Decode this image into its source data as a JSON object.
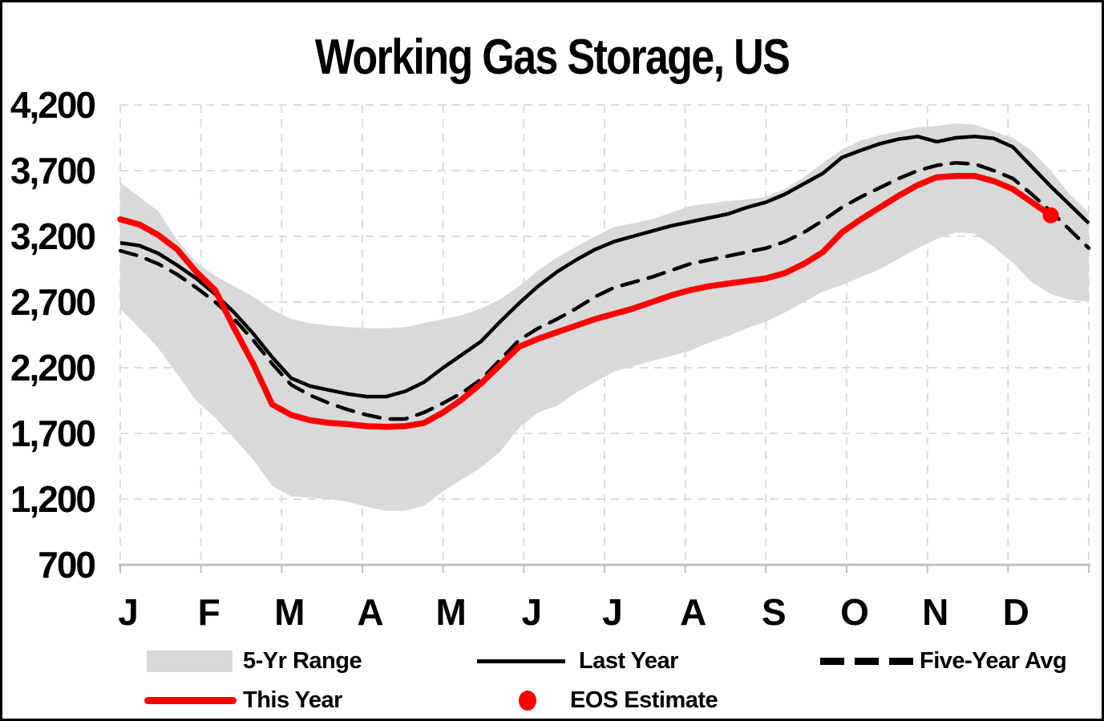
{
  "title": "Working Gas Storage, US",
  "colors": {
    "this_year": "#fe0000",
    "last_year": "#000000",
    "five_year_avg": "#000000",
    "range_band": "#d9d9d9",
    "gridline": "#dcdcdc",
    "axis_line": "#bfbfbf",
    "text": "#000000",
    "background": "#ffffff"
  },
  "legend": {
    "range_label": "5-Yr Range",
    "last_year_label": "Last Year",
    "five_year_avg_label": "Five-Year Avg",
    "this_year_label": "This Year",
    "eos_label": "EOS Estimate"
  },
  "chart_data": {
    "type": "line",
    "title": "Working Gas Storage, US",
    "x_axis": {
      "unit": "week-of-year",
      "month_tick_labels": [
        "J",
        "F",
        "M",
        "A",
        "M",
        "J",
        "J",
        "A",
        "S",
        "O",
        "N",
        "D"
      ],
      "weeks": 52
    },
    "y_axis": {
      "min": 700,
      "max": 4200,
      "step": 500,
      "tick_labels": [
        "4,200",
        "3,700",
        "3,200",
        "2,700",
        "2,200",
        "1,700",
        "1,200",
        "700"
      ],
      "grid": true
    },
    "series": [
      {
        "name": "5-Yr Range",
        "type": "band",
        "color": "#d9d9d9",
        "upper": [
          3610,
          3500,
          3390,
          3170,
          3000,
          2900,
          2820,
          2740,
          2640,
          2570,
          2540,
          2520,
          2510,
          2500,
          2500,
          2510,
          2540,
          2570,
          2600,
          2650,
          2720,
          2820,
          2940,
          3040,
          3120,
          3200,
          3270,
          3300,
          3330,
          3380,
          3430,
          3450,
          3470,
          3480,
          3500,
          3560,
          3650,
          3760,
          3860,
          3930,
          3970,
          4000,
          4030,
          4040,
          4060,
          4050,
          4000,
          3950,
          3850,
          3700,
          3520,
          3380
        ],
        "lower": [
          2650,
          2500,
          2350,
          2150,
          1950,
          1820,
          1660,
          1500,
          1300,
          1220,
          1210,
          1200,
          1180,
          1140,
          1110,
          1110,
          1150,
          1260,
          1350,
          1440,
          1560,
          1740,
          1860,
          1910,
          2010,
          2090,
          2170,
          2210,
          2250,
          2290,
          2330,
          2390,
          2440,
          2500,
          2550,
          2620,
          2700,
          2780,
          2830,
          2890,
          2950,
          3030,
          3110,
          3180,
          3230,
          3220,
          3120,
          3000,
          2850,
          2760,
          2720,
          2700
        ]
      },
      {
        "name": "Last Year",
        "type": "line",
        "style": "solid",
        "color": "#000000",
        "values": [
          3150,
          3130,
          3070,
          2980,
          2880,
          2760,
          2620,
          2460,
          2280,
          2120,
          2060,
          2030,
          2000,
          1980,
          1980,
          2020,
          2090,
          2200,
          2300,
          2400,
          2550,
          2690,
          2820,
          2930,
          3020,
          3100,
          3160,
          3200,
          3240,
          3280,
          3310,
          3340,
          3370,
          3420,
          3460,
          3520,
          3600,
          3680,
          3800,
          3855,
          3905,
          3940,
          3960,
          3920,
          3950,
          3960,
          3945,
          3880,
          3730,
          3580,
          3440,
          3300
        ]
      },
      {
        "name": "Five-Year Avg",
        "type": "line",
        "style": "dashed",
        "color": "#000000",
        "values": [
          3090,
          3050,
          2990,
          2910,
          2810,
          2700,
          2570,
          2410,
          2230,
          2070,
          1990,
          1930,
          1880,
          1840,
          1810,
          1810,
          1860,
          1930,
          2010,
          2110,
          2260,
          2410,
          2500,
          2570,
          2650,
          2740,
          2810,
          2850,
          2890,
          2940,
          2990,
          3020,
          3050,
          3080,
          3110,
          3160,
          3230,
          3320,
          3420,
          3500,
          3570,
          3640,
          3700,
          3740,
          3760,
          3750,
          3700,
          3640,
          3520,
          3390,
          3250,
          3110
        ]
      },
      {
        "name": "This Year",
        "type": "line",
        "style": "solid-thick",
        "color": "#fe0000",
        "values": [
          3330,
          3290,
          3210,
          3100,
          2930,
          2790,
          2500,
          2230,
          1920,
          1840,
          1800,
          1780,
          1770,
          1755,
          1750,
          1755,
          1780,
          1860,
          1960,
          2080,
          2220,
          2360,
          2420,
          2470,
          2520,
          2570,
          2610,
          2650,
          2700,
          2750,
          2790,
          2820,
          2840,
          2860,
          2880,
          2920,
          2990,
          3080,
          3230,
          3330,
          3420,
          3510,
          3590,
          3650,
          3660,
          3660,
          3620,
          3560,
          3460,
          3360
        ]
      },
      {
        "name": "EOS Estimate",
        "type": "point",
        "color": "#fe0000",
        "week": 49,
        "value": 3360
      }
    ]
  }
}
